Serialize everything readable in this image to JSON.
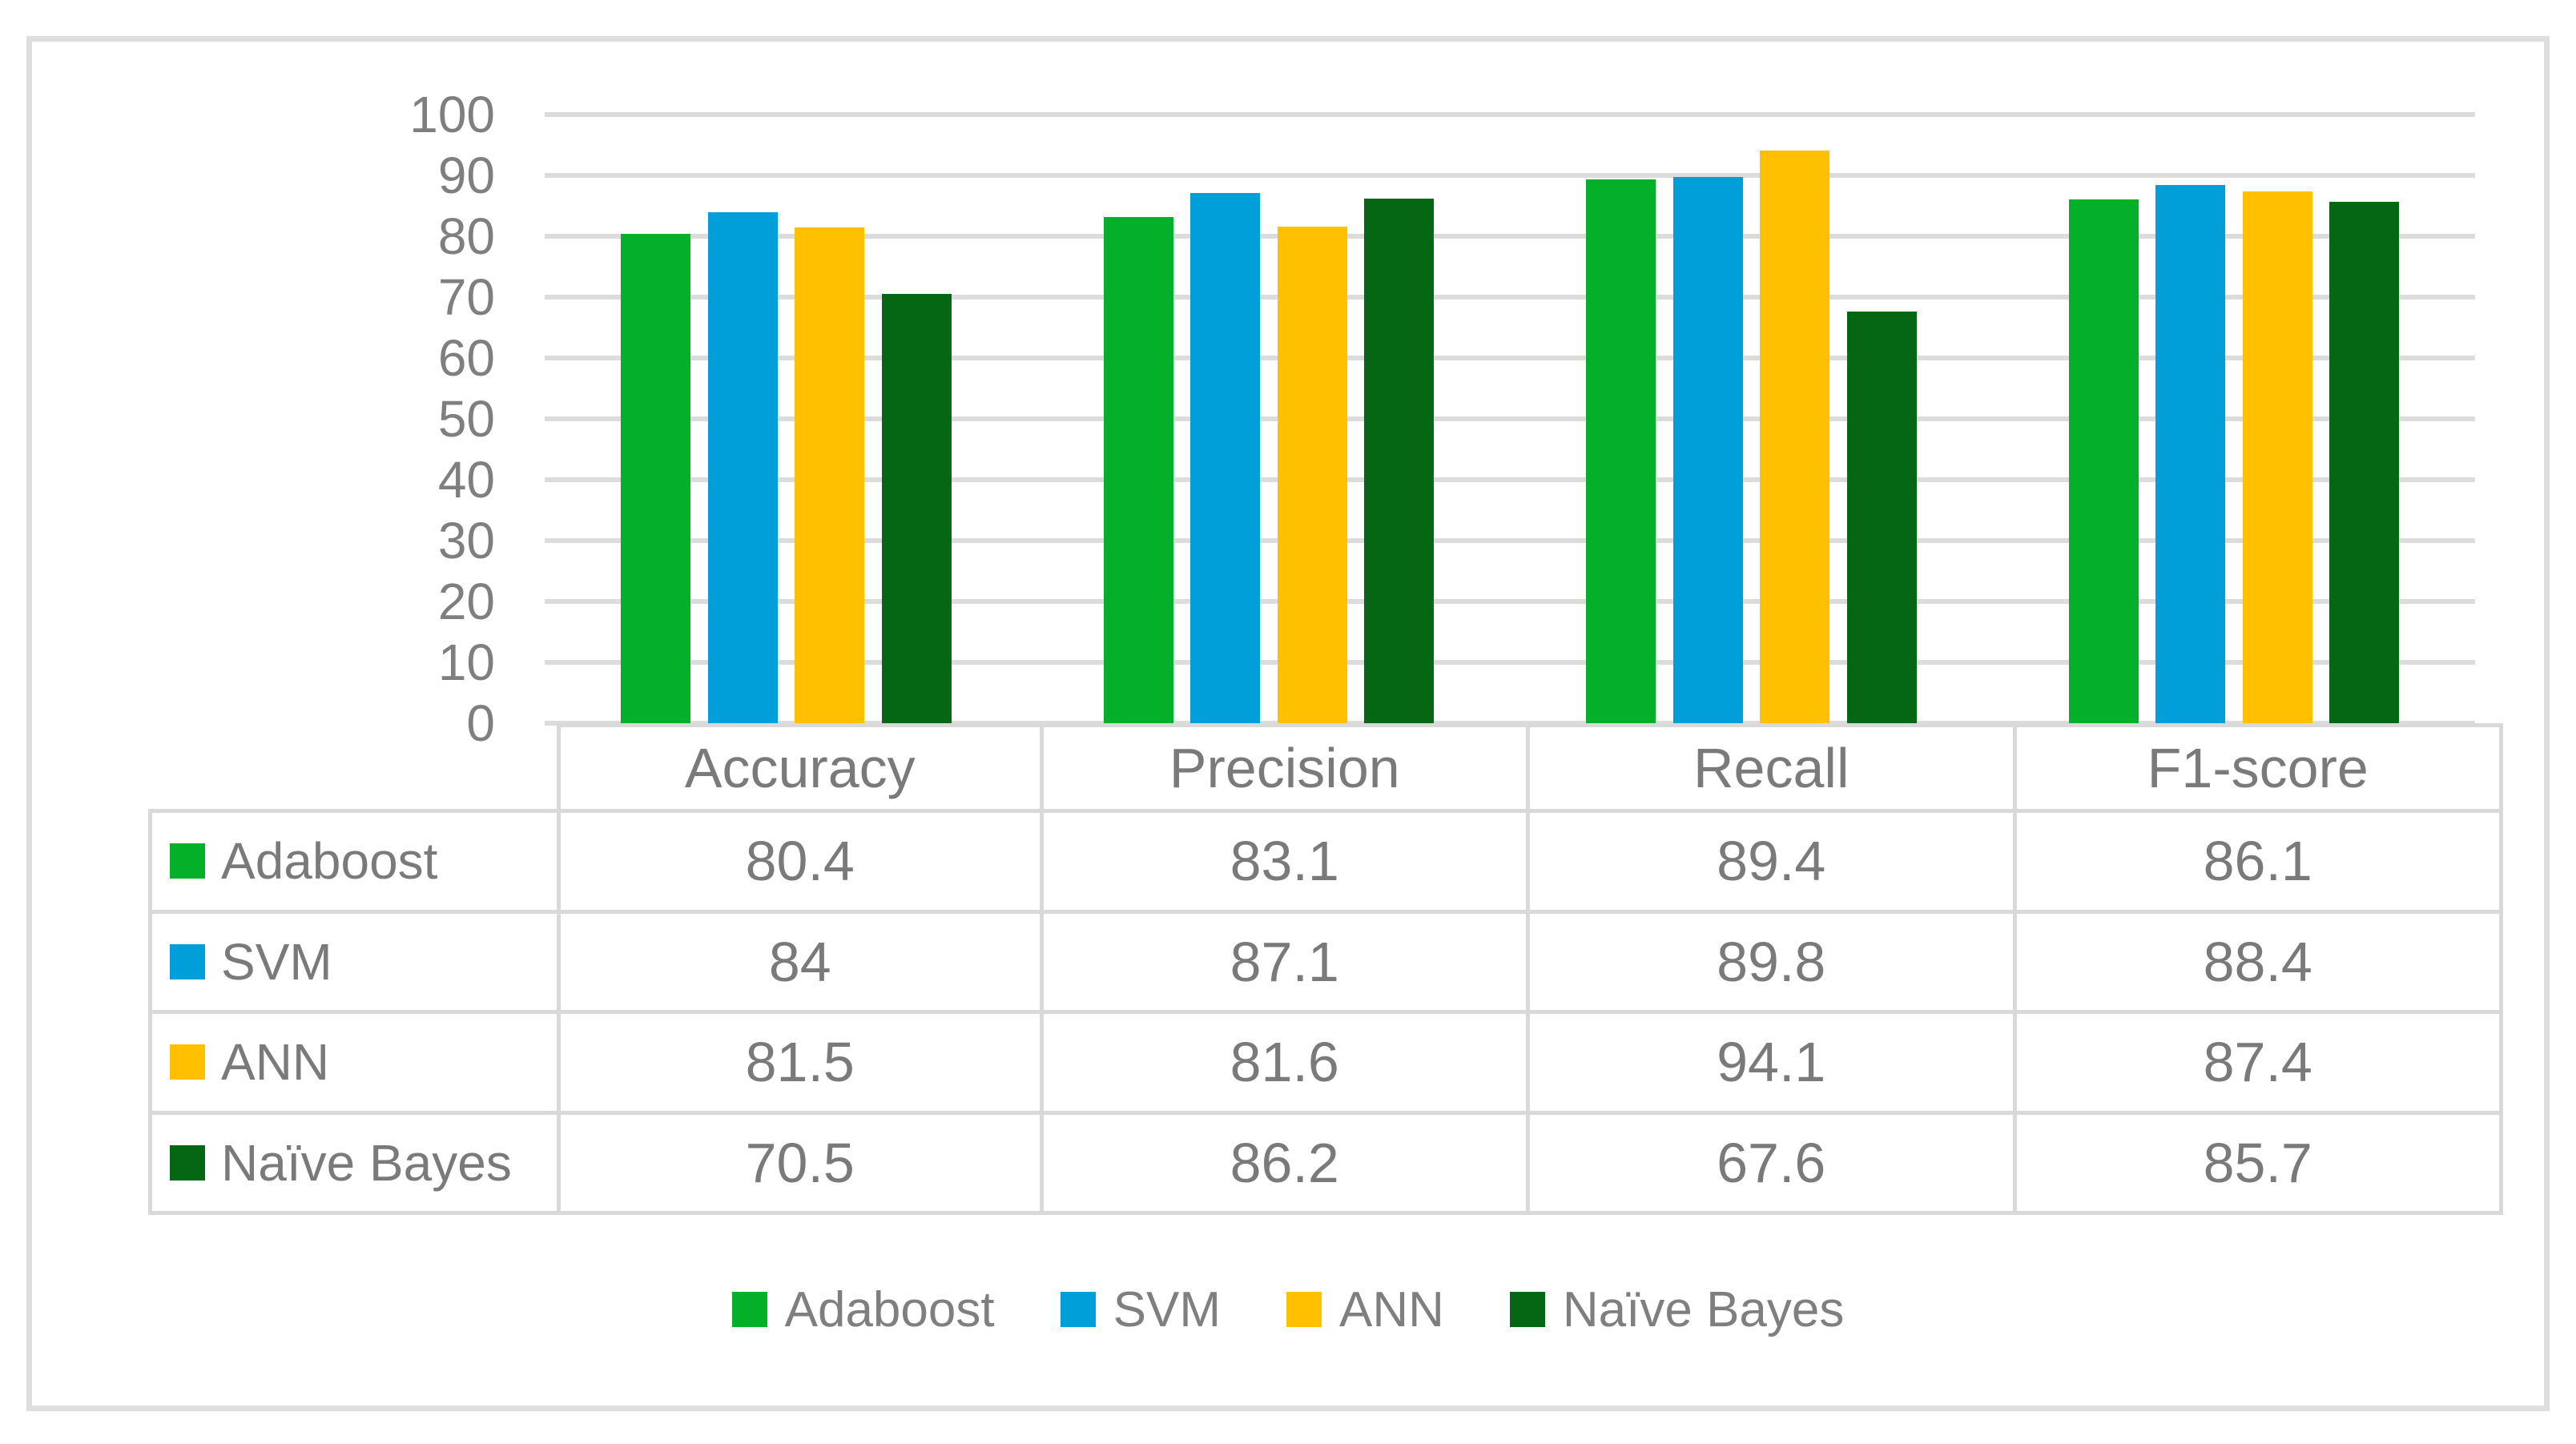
{
  "figure": {
    "background": "#FFFFFF",
    "frame_border_color": "#DEDEDE"
  },
  "chart_data": {
    "type": "bar",
    "title": "",
    "xlabel": "",
    "ylabel": "",
    "categories": [
      "Accuracy",
      "Precision",
      "Recall",
      "F1-score"
    ],
    "series": [
      {
        "name": "Adaboost",
        "color": "#04B02A",
        "values": [
          80.4,
          83.1,
          89.4,
          86.1
        ]
      },
      {
        "name": "SVM",
        "color": "#009FDA",
        "values": [
          84,
          87.1,
          89.8,
          88.4
        ]
      },
      {
        "name": "ANN",
        "color": "#FFC000",
        "values": [
          81.5,
          81.6,
          94.1,
          87.4
        ]
      },
      {
        "name": "Naïve Bayes",
        "color": "#056613",
        "values": [
          70.5,
          86.2,
          67.6,
          85.7
        ]
      }
    ],
    "ylim": [
      0,
      100
    ],
    "yticks": [
      100,
      90,
      80,
      70,
      60,
      50,
      40,
      30,
      20,
      10,
      0
    ],
    "grid": true,
    "gridline_color": "#DCDCDC",
    "axis_text_color": "#7F7F7F",
    "legend_position": "bottom",
    "data_table_shown": true
  }
}
